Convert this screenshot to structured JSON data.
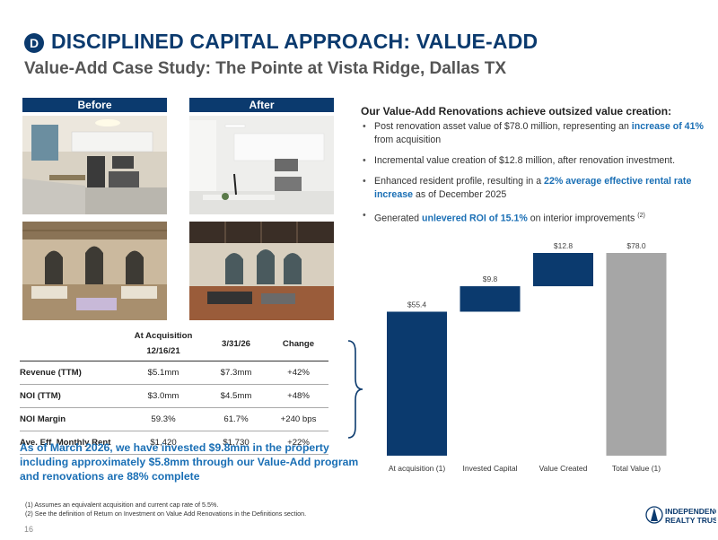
{
  "header": {
    "badge": "D",
    "title": "DISCIPLINED CAPITAL APPROACH: VALUE-ADD",
    "subtitle": "Value-Add Case Study: The Pointe at Vista Ridge, Dallas TX"
  },
  "photos": {
    "before_label": "Before",
    "after_label": "After"
  },
  "highlights": {
    "heading": "Our Value-Add Renovations achieve outsized value creation:",
    "bullet1_pre": "Post renovation asset value of $78.0 million, representing an ",
    "bullet1_hl": "increase of 41%",
    "bullet1_post": " from acquisition",
    "bullet2": "Incremental value creation of $12.8 million, after renovation investment.",
    "bullet3_pre": "Enhanced resident profile, resulting in a ",
    "bullet3_hl": "22% average effective rental rate increase",
    "bullet3_post": " as of December 2025",
    "bullet4_pre": "Generated ",
    "bullet4_hl": "unlevered ROI of 15.1%",
    "bullet4_post": " on interior improvements ",
    "bullet4_sup": "(2)"
  },
  "table": {
    "col1_line1": "At Acquisition",
    "col1_line2": "12/16/21",
    "col2": "3/31/26",
    "col3": "Change",
    "rows": [
      {
        "label": "Revenue (TTM)",
        "acq": "$5.1mm",
        "now": "$7.3mm",
        "change": "+42%"
      },
      {
        "label": "NOI (TTM)",
        "acq": "$3.0mm",
        "now": "$4.5mm",
        "change": "+48%"
      },
      {
        "label": "NOI Margin",
        "acq": "59.3%",
        "now": "61.7%",
        "change": "+240 bps"
      },
      {
        "label": "Ave. Eff. Monthly Rent",
        "acq": "$1,420",
        "now": "$1,730",
        "change": "+22%"
      }
    ]
  },
  "note": "As of March 2026, we have invested $9.8mm in the property including approximately $5.8mm through our Value-Add program and renovations are 88% complete",
  "footnotes": {
    "f1": "(1)  Assumes an equivalent acquisition and current cap rate of 5.5%.",
    "f2": "(2)  See the definition of Return on Investment on Value Add Renovations in the Definitions section."
  },
  "page_number": "16",
  "logo": {
    "line1": "INDEPENDENCE",
    "line2": "REALTY TRUST"
  },
  "colors": {
    "navy": "#0b3a6e",
    "accent_blue": "#1a6fb5",
    "gray_bar": "#a6a6a6"
  },
  "chart_data": {
    "type": "bar",
    "subtype": "waterfall",
    "categories": [
      "At acquisition (1)",
      "Invested Capital",
      "Value Created",
      "Total Value (1)"
    ],
    "values": [
      55.4,
      9.8,
      12.8,
      78.0
    ],
    "labels": [
      "$55.4",
      "$9.8",
      "$12.8",
      "$78.0"
    ],
    "colors": [
      "#0b3a6e",
      "#0b3a6e",
      "#0b3a6e",
      "#a6a6a6"
    ],
    "title": "",
    "xlabel": "",
    "ylabel": "",
    "ylim": [
      0,
      78.0
    ],
    "grid": false
  }
}
